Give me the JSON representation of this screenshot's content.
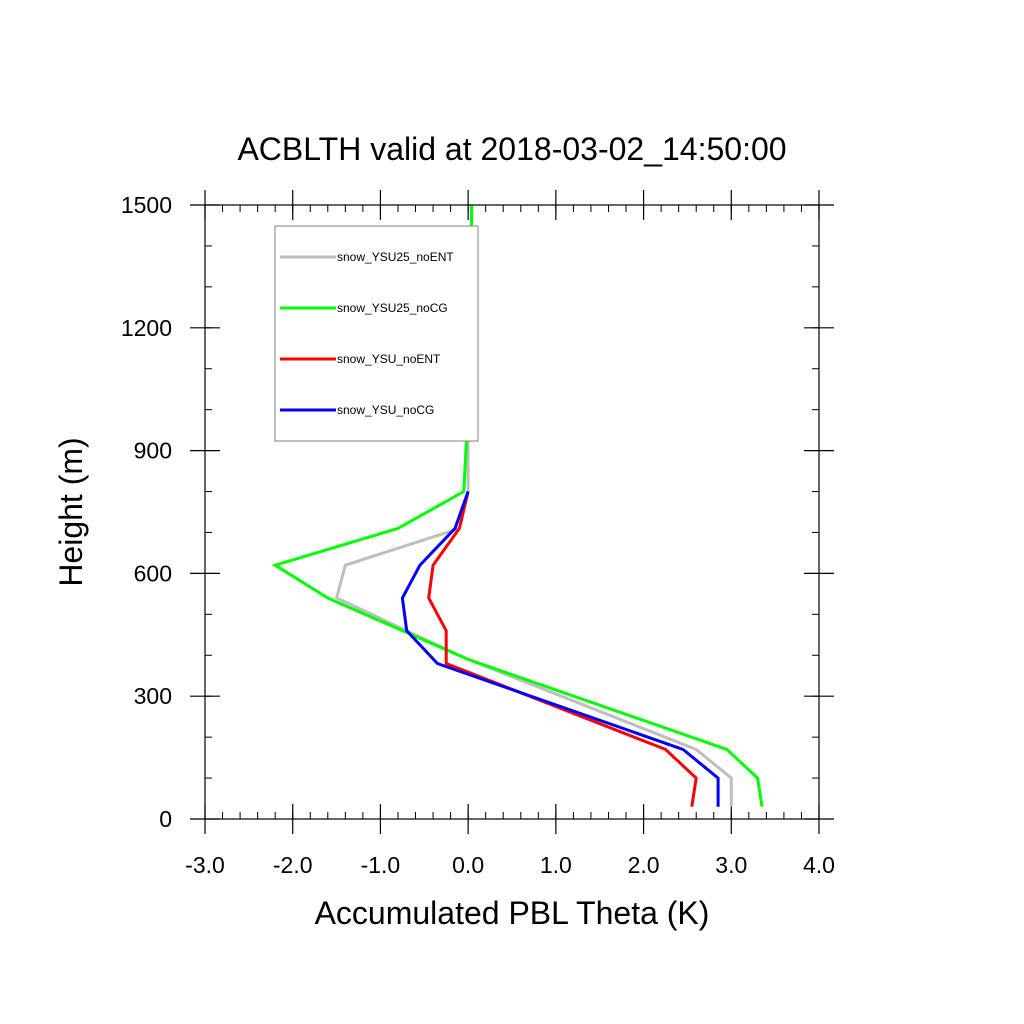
{
  "chart_data": {
    "type": "line",
    "title": "ACBLTH valid at 2018-03-02_14:50:00",
    "xlabel": "Accumulated PBL Theta (K)",
    "ylabel": "Height (m)",
    "xlim": [
      -3.0,
      4.0
    ],
    "ylim": [
      0,
      1500
    ],
    "xticks": [
      -3.0,
      -2.0,
      -1.0,
      0.0,
      1.0,
      2.0,
      3.0,
      4.0
    ],
    "xtick_labels": [
      "-3.0",
      "-2.0",
      "-1.0",
      "0.0",
      "1.0",
      "2.0",
      "3.0",
      "4.0"
    ],
    "yticks": [
      0,
      300,
      600,
      900,
      1200,
      1500
    ],
    "ytick_labels": [
      "0",
      "300",
      "600",
      "900",
      "1200",
      "1500"
    ],
    "grid": false,
    "legend_position": "top-left",
    "series": [
      {
        "name": "snow_YSU25_noENT",
        "color": "#bebebe",
        "points": [
          [
            3.0,
            30
          ],
          [
            3.0,
            100
          ],
          [
            2.6,
            170
          ],
          [
            0.0,
            390
          ],
          [
            -1.5,
            540
          ],
          [
            -1.4,
            620
          ],
          [
            -0.1,
            710
          ],
          [
            0.0,
            800
          ],
          [
            0.0,
            1000
          ],
          [
            0.02,
            1200
          ],
          [
            0.04,
            1500
          ]
        ]
      },
      {
        "name": "snow_YSU25_noCG",
        "color": "#00ff00",
        "points": [
          [
            3.35,
            30
          ],
          [
            3.3,
            100
          ],
          [
            2.95,
            170
          ],
          [
            0.0,
            390
          ],
          [
            -1.6,
            540
          ],
          [
            -2.2,
            620
          ],
          [
            -0.8,
            710
          ],
          [
            -0.05,
            800
          ],
          [
            0.0,
            1000
          ],
          [
            0.02,
            1200
          ],
          [
            0.04,
            1500
          ]
        ]
      },
      {
        "name": "snow_YSU_noENT",
        "color": "#ff0000",
        "points": [
          [
            2.55,
            30
          ],
          [
            2.6,
            100
          ],
          [
            2.25,
            170
          ],
          [
            -0.25,
            380
          ],
          [
            -0.25,
            460
          ],
          [
            -0.45,
            540
          ],
          [
            -0.4,
            620
          ],
          [
            -0.1,
            710
          ],
          [
            0.0,
            800
          ]
        ]
      },
      {
        "name": "snow_YSU_noCG",
        "color": "#0000ff",
        "points": [
          [
            2.85,
            30
          ],
          [
            2.85,
            100
          ],
          [
            2.45,
            170
          ],
          [
            -0.35,
            380
          ],
          [
            -0.7,
            460
          ],
          [
            -0.75,
            540
          ],
          [
            -0.55,
            620
          ],
          [
            -0.15,
            710
          ],
          [
            0.0,
            800
          ]
        ]
      }
    ]
  }
}
